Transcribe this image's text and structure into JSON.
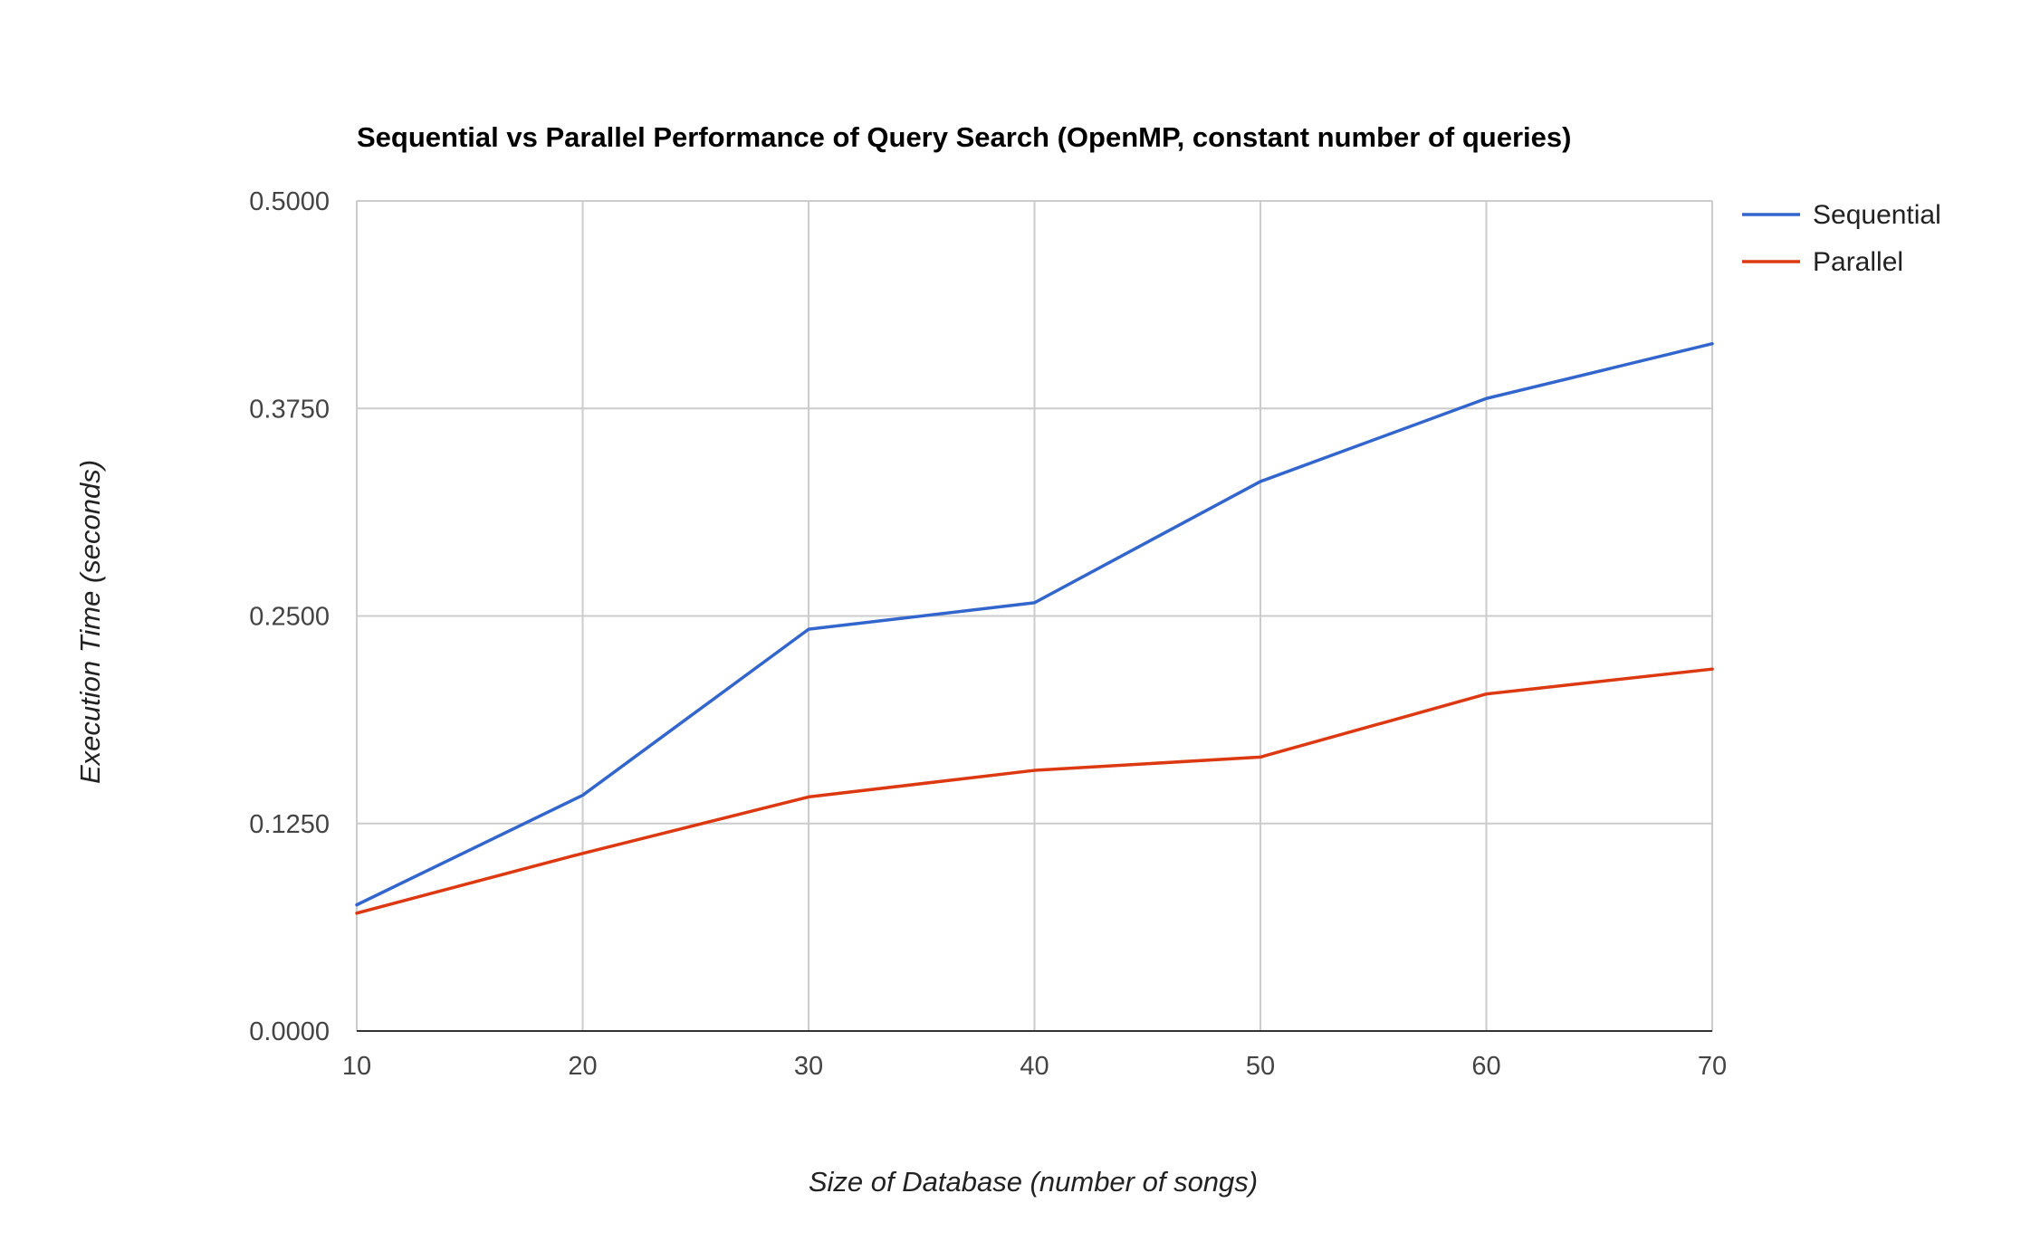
{
  "chart_data": {
    "type": "line",
    "title": "Sequential vs Parallel Performance of Query Search (OpenMP, constant number of queries)",
    "xlabel": "Size of Database (number of songs)",
    "ylabel": "Execution Time (seconds)",
    "x": [
      10,
      20,
      30,
      40,
      50,
      60,
      70
    ],
    "x_tick_labels": [
      "10",
      "20",
      "30",
      "40",
      "50",
      "60",
      "70"
    ],
    "y_tick_values": [
      0,
      0.125,
      0.25,
      0.375,
      0.5
    ],
    "y_tick_labels": [
      "0.0000",
      "0.1250",
      "0.2500",
      "0.3750",
      "0.5000"
    ],
    "xlim": [
      10,
      70
    ],
    "ylim": [
      0,
      0.5
    ],
    "grid": true,
    "legend_position": "right",
    "series": [
      {
        "name": "Sequential",
        "color": "#3366cc",
        "values": [
          0.076,
          0.142,
          0.242,
          0.258,
          0.331,
          0.381,
          0.414
        ]
      },
      {
        "name": "Parallel",
        "color": "#dc3912",
        "values": [
          0.071,
          0.107,
          0.141,
          0.157,
          0.165,
          0.203,
          0.218
        ]
      }
    ]
  }
}
